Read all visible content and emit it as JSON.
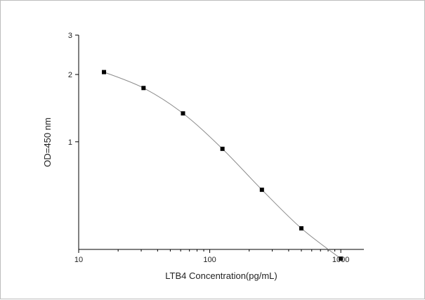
{
  "chart_data": {
    "type": "scatter",
    "title": "",
    "xlabel": "LTB4  Concentration(pg/mL)",
    "ylabel": "OD=450 nm",
    "xscale": "log",
    "yscale": "log",
    "xlim": [
      10,
      1500
    ],
    "ylim": [
      0.33,
      3
    ],
    "x_ticks": [
      10,
      100,
      1000
    ],
    "x_tick_labels": [
      "10",
      "100",
      "1000"
    ],
    "y_ticks": [
      1,
      2,
      3
    ],
    "y_tick_labels": [
      "1",
      "2",
      "3"
    ],
    "grid": false,
    "legend": "none",
    "series": [
      {
        "x": [
          15.6,
          31.25,
          62.5,
          125,
          250,
          500,
          1000
        ],
        "y": [
          2.05,
          1.74,
          1.34,
          0.93,
          0.61,
          0.41,
          0.3
        ],
        "marker": "square",
        "line": "smooth",
        "color": "#000000",
        "line_color": "#8c8c8c"
      }
    ]
  }
}
